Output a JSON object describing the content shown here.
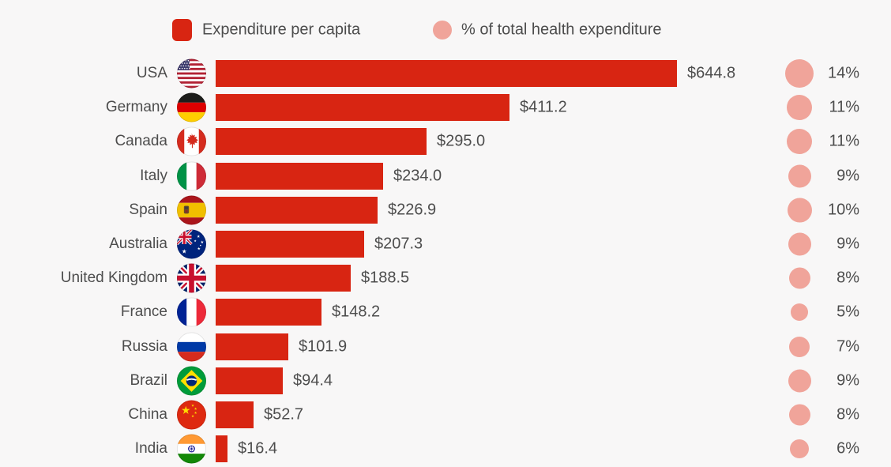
{
  "legend": {
    "bar_label": "Expenditure per capita",
    "circle_label": "% of total health expenditure"
  },
  "colors": {
    "bar_red": "#d82512",
    "circle_pink": "#f0a49a",
    "background": "#f8f7f7",
    "text": "#4d4d4d"
  },
  "chart_data": {
    "type": "bar",
    "orientation": "horizontal",
    "categories": [
      "USA",
      "Germany",
      "Canada",
      "Italy",
      "Spain",
      "Australia",
      "United Kingdom",
      "France",
      "Russia",
      "Brazil",
      "China",
      "India"
    ],
    "flags": [
      "usa",
      "germany",
      "canada",
      "italy",
      "spain",
      "australia",
      "uk",
      "france",
      "russia",
      "brazil",
      "china",
      "india"
    ],
    "series": [
      {
        "name": "Expenditure per capita",
        "values": [
          644.8,
          411.2,
          295.0,
          234.0,
          226.9,
          207.3,
          188.5,
          148.2,
          101.9,
          94.4,
          52.7,
          16.4
        ],
        "labels": [
          "$644.8",
          "$411.2",
          "$295.0",
          "$234.0",
          "$226.9",
          "$207.3",
          "$188.5",
          "$148.2",
          "$101.9",
          "$94.4",
          "$52.7",
          "$16.4"
        ]
      },
      {
        "name": "% of total health expenditure",
        "values": [
          14,
          11,
          11,
          9,
          10,
          9,
          8,
          5,
          7,
          9,
          8,
          6
        ],
        "labels": [
          "14%",
          "11%",
          "11%",
          "9%",
          "10%",
          "9%",
          "8%",
          "5%",
          "7%",
          "9%",
          "8%",
          "6%"
        ]
      }
    ],
    "value_axis_range": [
      0,
      660
    ],
    "grid": false,
    "legend_position": "top"
  }
}
